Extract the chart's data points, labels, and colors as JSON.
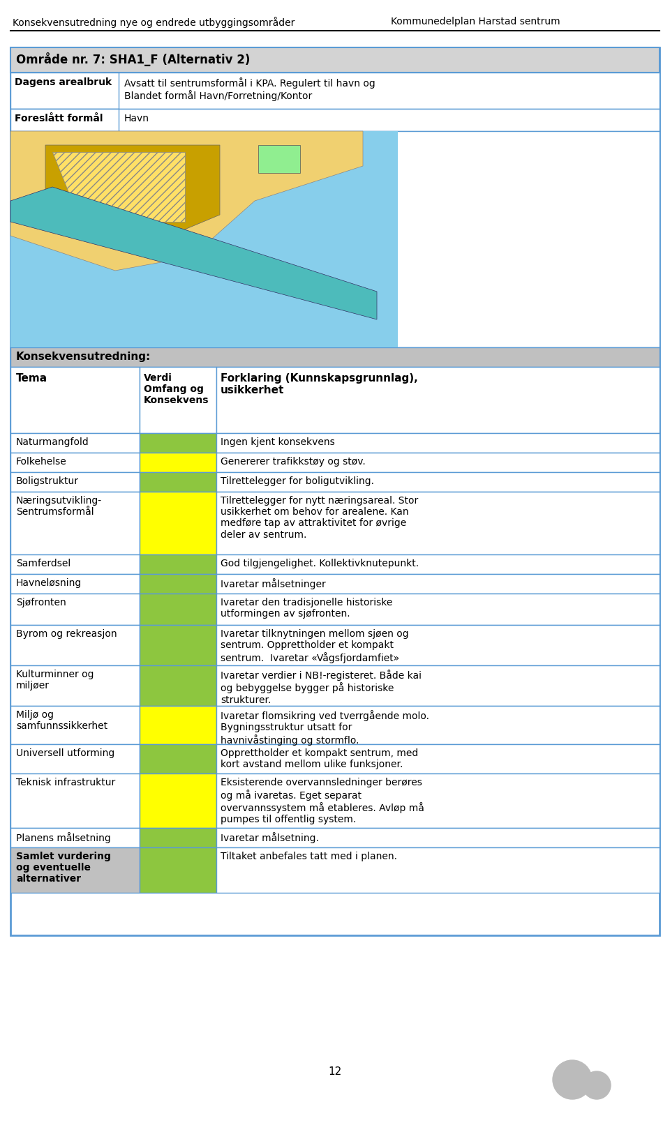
{
  "header_left": "Konsekvensutredning nye og endrede utbyggingsområder",
  "header_right": "Kommunedelplan Harstad sentrum",
  "box_title": "Område nr. 7: SHA1_F (Alternativ 2)",
  "info_rows": [
    [
      "Dagens arealbruk",
      "Avsatt til sentrumsformål i KPA. Regulert til havn og\nBlandet formål Havn/Forretning/Kontor"
    ],
    [
      "Foreslått formål",
      "Havn"
    ]
  ],
  "konsekvens_header": "Konsekvensutredning:",
  "table_header": [
    "Tema",
    "Verdi\nOmfang og\nKonsekvens",
    "Forklaring (Kunnskapsgrunnlag),\nusikkerhet"
  ],
  "rows": [
    [
      "Naturmangfold",
      "light_green",
      "Ingen kjent konsekvens"
    ],
    [
      "Folkehelse",
      "yellow",
      "Genererer trafikkstøy og støv."
    ],
    [
      "Boligstruktur",
      "light_green",
      "Tilrettelegger for boligutvikling."
    ],
    [
      "Næringsutvikling-\nSentrumsformål",
      "yellow",
      "Tilrettelegger for nytt næringsareal. Stor\nusikkerhet om behov for arealene. Kan\nmedføre tap av attraktivitet for øvrige\ndeler av sentrum."
    ],
    [
      "Samferdsel",
      "light_green",
      "God tilgjengelighet. Kollektivknutepunkt."
    ],
    [
      "Havneløsning",
      "light_green",
      "Ivaretar målsetninger"
    ],
    [
      "Sjøfronten",
      "light_green",
      "Ivaretar den tradisjonelle historiske\nutformingen av sjøfronten."
    ],
    [
      "Byrom og rekreasjon",
      "light_green",
      "Ivaretar tilknytningen mellom sjøen og\nsentrum. Opprettholder et kompakt\nsentrum.  Ivaretar «Vågsfjordamfiet»"
    ],
    [
      "Kulturminner og\nmiljøer",
      "light_green",
      "Ivaretar verdier i NB!-registeret. Både kai\nog bebyggelse bygger på historiske\nstrukturer."
    ],
    [
      "Miljø og\nsamfunnssikkerhet",
      "yellow",
      "Ivaretar flomsikring ved tverrgående molo.\nBygningsstruktur utsatt for\nhavnivåstinging og stormflo."
    ],
    [
      "Universell utforming",
      "light_green",
      "Opprettholder et kompakt sentrum, med\nkort avstand mellom ulike funksjoner."
    ],
    [
      "Teknisk infrastruktur",
      "yellow",
      "Eksisterende overvannsledninger berøres\nog må ivaretas. Eget separat\novervannssystem må etableres. Avløp må\npumpes til offentlig system."
    ],
    [
      "Planens målsetning",
      "light_green",
      "Ivaretar målsetning."
    ]
  ],
  "samlet_row": [
    "Samlet vurdering\nog eventuelle\nalternativer",
    "light_green",
    "Tiltaket anbefales tatt med i planen."
  ],
  "colors": {
    "light_green": "#8DC63F",
    "yellow": "#FFFF00",
    "konsekvens_bg": "#C0C0C0",
    "box_bg": "#D3D3D3",
    "border": "#5B9BD5",
    "white": "#FFFFFF"
  },
  "footer_page": "12",
  "map_colors": {
    "water": "#87CEEB",
    "land_beige": "#F0D070",
    "land_brown": "#C8A000",
    "hatch_yellow": "#FFE066",
    "green_patch": "#90EE90",
    "teal": "#4DBBBB"
  }
}
